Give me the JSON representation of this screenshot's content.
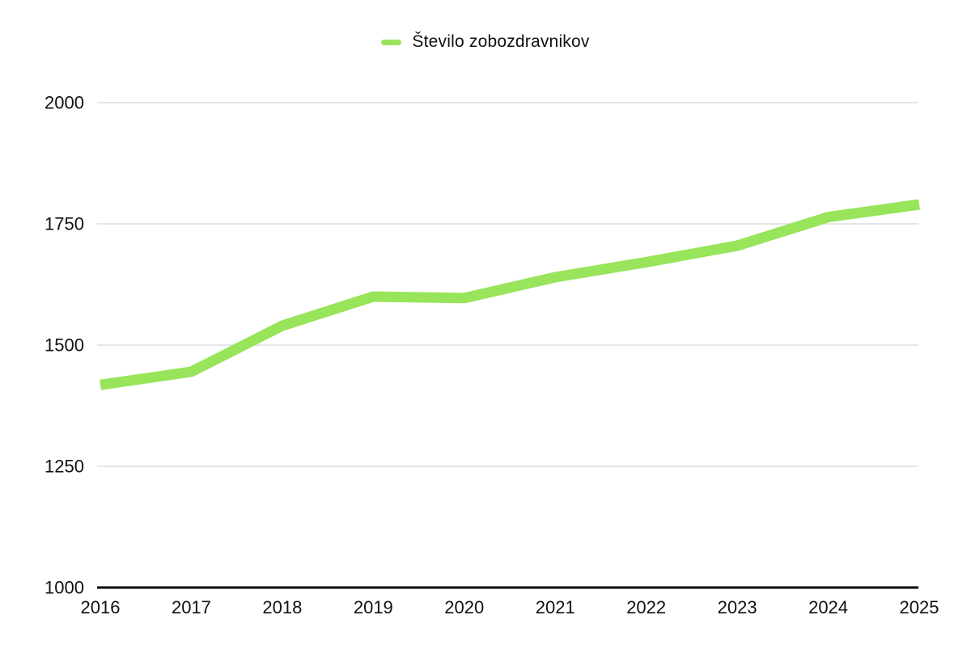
{
  "page": {
    "background": "#FFFFFF"
  },
  "chart_data": {
    "type": "line",
    "title": "",
    "legend_position": "top-center",
    "grid": true,
    "x": [
      "2016",
      "2017",
      "2018",
      "2019",
      "2020",
      "2021",
      "2022",
      "2023",
      "2024",
      "2025"
    ],
    "series": [
      {
        "name": "Število zobozdravnikov",
        "color": "#98E45A",
        "values": [
          1418,
          1445,
          1540,
          1600,
          1597,
          1640,
          1671,
          1705,
          1764,
          1790
        ]
      }
    ],
    "ylim": [
      1000,
      2000
    ],
    "yticks": [
      1000,
      1250,
      1500,
      1750,
      2000
    ],
    "xlabel": "",
    "ylabel": "",
    "colors": {
      "line": "#98E45A",
      "grid": "#D8D8D8",
      "axis": "#000000",
      "text": "#111111",
      "background": "#FFFFFF"
    }
  }
}
